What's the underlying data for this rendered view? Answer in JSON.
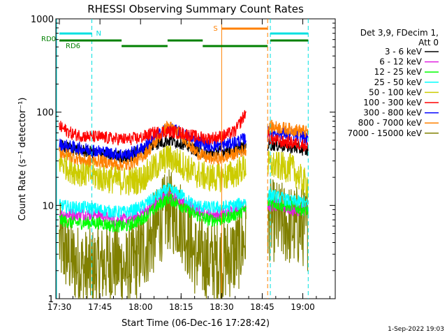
{
  "chart_data": {
    "type": "line",
    "title": "RHESSI Observing Summary Count Rates",
    "xlabel": "Start Time (06-Dec-16 17:28:42)",
    "ylabel": "Count Rate (s⁻¹ detector⁻¹)",
    "yscale": "log",
    "ylim": [
      1,
      1000
    ],
    "xlim": [
      "17:28:42",
      "19:12:00"
    ],
    "xticks": [
      "17:30",
      "17:45",
      "18:00",
      "18:15",
      "18:30",
      "18:45",
      "19:00"
    ],
    "yticks": [
      "1",
      "10",
      "100",
      "1000"
    ],
    "grid": false,
    "legend_header": [
      "Det 3,9, FDecim 1,",
      "Att 0"
    ],
    "legend_position": "right",
    "footer": "1-Sep-2022 19:03",
    "gaps": [
      [
        "18:39",
        "18:47"
      ]
    ],
    "x": [
      "17:30",
      "17:35",
      "17:40",
      "17:45",
      "17:50",
      "17:55",
      "18:00",
      "18:05",
      "18:10",
      "18:15",
      "18:20",
      "18:25",
      "18:30",
      "18:35",
      "18:39",
      "18:48",
      "18:52",
      "18:56",
      "19:00",
      "19:02"
    ],
    "series": [
      {
        "name": "3 - 6 keV",
        "color": "#000000",
        "values": [
          44,
          40,
          38,
          36,
          34,
          33,
          38,
          45,
          50,
          47,
          40,
          36,
          38,
          40,
          42,
          45,
          44,
          42,
          40,
          38
        ]
      },
      {
        "name": "6 - 12 keV",
        "color": "#e020e0",
        "values": [
          8,
          8,
          8,
          8,
          7,
          7,
          8,
          10,
          13,
          11,
          9,
          8,
          8,
          9,
          10,
          10,
          10,
          9,
          9,
          9
        ]
      },
      {
        "name": "12 - 25 keV",
        "color": "#00ff00",
        "values": [
          7,
          6.5,
          6.5,
          6.5,
          6,
          6,
          7,
          9,
          12,
          10,
          8,
          7,
          7,
          8,
          9,
          11,
          10,
          10,
          9,
          9
        ]
      },
      {
        "name": "25 - 50 keV",
        "color": "#00ffff",
        "values": [
          10,
          9.5,
          9.5,
          9,
          8.5,
          8.5,
          9.5,
          12,
          15,
          13,
          10,
          9.5,
          9.5,
          10,
          11,
          13,
          12,
          11,
          11,
          10
        ]
      },
      {
        "name": "50 - 100 keV",
        "color": "#cccc00",
        "values": [
          30,
          24,
          22,
          20,
          19,
          18,
          19,
          25,
          33,
          28,
          22,
          20,
          20,
          22,
          26,
          27,
          26,
          25,
          18,
          17
        ]
      },
      {
        "name": "100 - 300 keV",
        "color": "#ff0000",
        "values": [
          70,
          58,
          55,
          54,
          52,
          51,
          53,
          60,
          62,
          60,
          55,
          52,
          55,
          62,
          100,
          52,
          48,
          47,
          45,
          44
        ]
      },
      {
        "name": "300 - 800 keV",
        "color": "#0000ff",
        "values": [
          45,
          42,
          40,
          38,
          36,
          35,
          40,
          52,
          68,
          60,
          50,
          44,
          44,
          48,
          52,
          62,
          60,
          57,
          55,
          50
        ]
      },
      {
        "name": "800 - 7000 keV",
        "color": "#ff8000",
        "values": [
          38,
          33,
          30,
          30,
          28,
          27,
          32,
          45,
          72,
          58,
          38,
          32,
          32,
          36,
          40,
          70,
          68,
          65,
          63,
          60
        ]
      },
      {
        "name": "7000 - 15000 keV",
        "color": "#808000",
        "values": [
          4,
          2.5,
          2,
          2.2,
          2.6,
          2,
          3,
          5,
          9,
          7,
          3,
          2.5,
          2.5,
          3,
          4.5,
          7,
          6.5,
          6,
          6,
          5.5
        ]
      }
    ],
    "flag_labels": {
      "n": "N",
      "s": "S",
      "rd0": "RD0",
      "rd6": "RD6"
    },
    "flag_colors": {
      "n": "#00e0e0",
      "s": "#ff8000",
      "rd": "#008000"
    },
    "flags": {
      "n_segments": [
        [
          "17:30",
          "17:42"
        ],
        [
          "18:48",
          "19:02"
        ]
      ],
      "n_marks": [
        "17:42",
        "18:48",
        "19:02"
      ],
      "s_segments": [
        [
          "18:30",
          "18:47"
        ]
      ],
      "s_marks": [
        "18:30",
        "18:47"
      ],
      "rd_segments": [
        [
          "17:30",
          "17:53"
        ],
        [
          "17:53",
          "18:10"
        ],
        [
          "18:10",
          "18:23"
        ],
        [
          "18:23",
          "18:47"
        ],
        [
          "18:48",
          "19:02"
        ]
      ]
    }
  }
}
